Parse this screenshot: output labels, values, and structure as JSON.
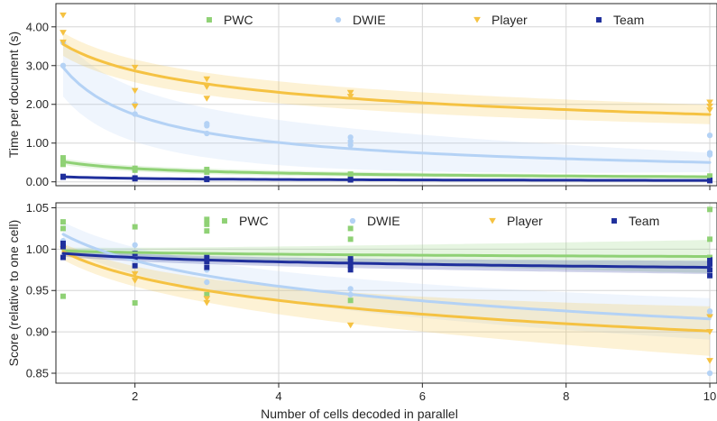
{
  "xlabel": "Number of cells decoded in parallel",
  "colors": {
    "PWC": "#8fd175",
    "DWIE": "#b4d2f5",
    "Player": "#f5c242",
    "Team": "#1f2f9c"
  },
  "chart_data": [
    {
      "type": "scatter",
      "title": "",
      "xlabel": "",
      "ylabel": "Time per document (s)",
      "xlim": [
        0.9,
        10.1
      ],
      "ylim": [
        -0.1,
        4.6
      ],
      "xticks": [
        2,
        4,
        6,
        8,
        10
      ],
      "xtick_labels": [
        "",
        "",
        "",
        "",
        ""
      ],
      "yticks": [
        0,
        1,
        2,
        3,
        4
      ],
      "ytick_labels": [
        "0.00",
        "1.00",
        "2.00",
        "3.00",
        "4.00"
      ],
      "grid": true,
      "legend": "top-center",
      "series": [
        {
          "name": "PWC",
          "marker": "square",
          "color": "#8fd175",
          "points": [
            [
              1,
              0.62
            ],
            [
              1,
              0.55
            ],
            [
              1,
              0.45
            ],
            [
              2,
              0.35
            ],
            [
              2,
              0.3
            ],
            [
              3,
              0.32
            ],
            [
              3,
              0.25
            ],
            [
              5,
              0.2
            ],
            [
              5,
              0.18
            ],
            [
              10,
              0.15
            ],
            [
              10,
              0.12
            ]
          ],
          "fit": {
            "a": 0.52,
            "b": -0.6
          },
          "band": [
            0.08,
            0.04
          ]
        },
        {
          "name": "DWIE",
          "marker": "circle",
          "color": "#b4d2f5",
          "points": [
            [
              1,
              3.6
            ],
            [
              1,
              3.0
            ],
            [
              2,
              2.0
            ],
            [
              2,
              1.75
            ],
            [
              3,
              1.5
            ],
            [
              3,
              1.45
            ],
            [
              3,
              1.25
            ],
            [
              5,
              1.15
            ],
            [
              5,
              1.05
            ],
            [
              5,
              0.95
            ],
            [
              10,
              1.2
            ],
            [
              10,
              0.75
            ],
            [
              10,
              0.7
            ]
          ],
          "fit": {
            "a": 2.95,
            "b": -0.77
          },
          "band": [
            0.75,
            0.25
          ]
        },
        {
          "name": "Player",
          "marker": "triangle-down",
          "color": "#f5c242",
          "points": [
            [
              1,
              4.3
            ],
            [
              1,
              3.85
            ],
            [
              1,
              3.6
            ],
            [
              2,
              2.95
            ],
            [
              2,
              2.35
            ],
            [
              2,
              1.95
            ],
            [
              3,
              2.65
            ],
            [
              3,
              2.45
            ],
            [
              3,
              2.15
            ],
            [
              5,
              2.3
            ],
            [
              5,
              2.2
            ],
            [
              10,
              2.05
            ],
            [
              10,
              1.95
            ],
            [
              10,
              1.85
            ]
          ],
          "fit": {
            "a": 3.55,
            "b": -0.31
          },
          "band": [
            0.3,
            0.25
          ]
        },
        {
          "name": "Team",
          "marker": "square",
          "color": "#1f2f9c",
          "points": [
            [
              1,
              0.14
            ],
            [
              1,
              0.12
            ],
            [
              2,
              0.1
            ],
            [
              2,
              0.08
            ],
            [
              3,
              0.08
            ],
            [
              3,
              0.06
            ],
            [
              5,
              0.06
            ],
            [
              5,
              0.05
            ],
            [
              10,
              0.04
            ],
            [
              10,
              0.03
            ]
          ],
          "fit": {
            "a": 0.13,
            "b": -0.55
          },
          "band": [
            0.02,
            0.01
          ]
        }
      ]
    },
    {
      "type": "scatter",
      "title": "",
      "xlabel": "Number of cells decoded in parallel",
      "ylabel": "Score (relative to one cell)",
      "xlim": [
        0.9,
        10.1
      ],
      "ylim": [
        0.838,
        1.056
      ],
      "xticks": [
        2,
        4,
        6,
        8,
        10
      ],
      "xtick_labels": [
        "2",
        "4",
        "6",
        "8",
        "10"
      ],
      "yticks": [
        0.85,
        0.9,
        0.95,
        1.0,
        1.05
      ],
      "ytick_labels": [
        "0.85",
        "0.90",
        "0.95",
        "1.00",
        "1.05"
      ],
      "grid": true,
      "legend": "top-center",
      "series": [
        {
          "name": "PWC",
          "marker": "square",
          "color": "#8fd175",
          "points": [
            [
              1,
              1.033
            ],
            [
              1,
              1.025
            ],
            [
              1,
              0.943
            ],
            [
              2,
              1.027
            ],
            [
              2,
              0.935
            ],
            [
              3,
              1.036
            ],
            [
              3,
              1.03
            ],
            [
              3,
              1.022
            ],
            [
              3,
              0.945
            ],
            [
              5,
              1.025
            ],
            [
              5,
              1.012
            ],
            [
              5,
              0.938
            ],
            [
              10,
              1.048
            ],
            [
              10,
              1.012
            ],
            [
              10,
              0.99
            ]
          ],
          "fit": {
            "a": 0.998,
            "b": -0.003
          },
          "band": [
            0.004,
            0.02
          ]
        },
        {
          "name": "DWIE",
          "marker": "circle",
          "color": "#b4d2f5",
          "points": [
            [
              1,
              1.01
            ],
            [
              2,
              1.005
            ],
            [
              2,
              0.99
            ],
            [
              3,
              0.975
            ],
            [
              3,
              0.96
            ],
            [
              5,
              0.952
            ],
            [
              5,
              0.945
            ],
            [
              10,
              0.925
            ],
            [
              10,
              0.92
            ],
            [
              10,
              0.85
            ]
          ],
          "fit": {
            "a": 1.018,
            "b": -0.046
          },
          "band": [
            0.015,
            0.025
          ]
        },
        {
          "name": "Player",
          "marker": "triangle-down",
          "color": "#f5c242",
          "points": [
            [
              1,
              1.0
            ],
            [
              2,
              0.97
            ],
            [
              2,
              0.962
            ],
            [
              3,
              0.94
            ],
            [
              3,
              0.935
            ],
            [
              5,
              0.908
            ],
            [
              10,
              0.918
            ],
            [
              10,
              0.9
            ],
            [
              10,
              0.865
            ]
          ],
          "fit": {
            "a": 0.997,
            "b": -0.044
          },
          "band": [
            0.01,
            0.03
          ]
        },
        {
          "name": "Team",
          "marker": "square",
          "color": "#1f2f9c",
          "points": [
            [
              1,
              1.007
            ],
            [
              1,
              1.003
            ],
            [
              1,
              0.99
            ],
            [
              2,
              0.995
            ],
            [
              2,
              0.988
            ],
            [
              2,
              0.98
            ],
            [
              3,
              0.99
            ],
            [
              3,
              0.985
            ],
            [
              3,
              0.978
            ],
            [
              5,
              0.99
            ],
            [
              5,
              0.985
            ],
            [
              5,
              0.98
            ],
            [
              5,
              0.975
            ],
            [
              10,
              0.987
            ],
            [
              10,
              0.982
            ],
            [
              10,
              0.975
            ],
            [
              10,
              0.968
            ]
          ],
          "fit": {
            "a": 0.995,
            "b": -0.0075
          },
          "band": [
            0.004,
            0.008
          ]
        }
      ]
    }
  ]
}
